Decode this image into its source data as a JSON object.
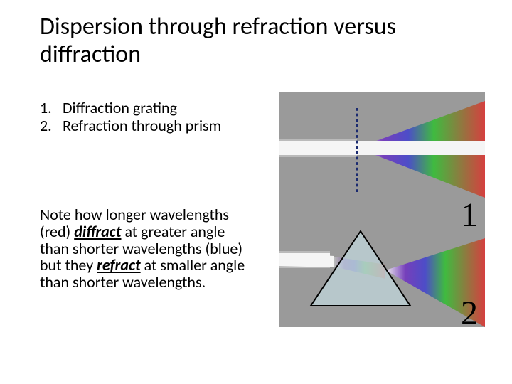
{
  "title_line1": "Dispersion through refraction versus",
  "title_line2": "diffraction",
  "list": {
    "item1_num": "1.",
    "item1_text": "Diffraction grating",
    "item2_num": "2.",
    "item2_text": "Refraction through prism"
  },
  "note": {
    "t1": "Note how longer wavelengths (red) ",
    "t2": "diffract",
    "t3": " at greater angle than shorter wavelengths (blue) but they ",
    "t4": "refract",
    "t5": " at smaller angle than shorter wavelengths."
  },
  "diagram": {
    "label1": "1",
    "label2": "2",
    "label_fontsize": 48,
    "label_color": "#000000",
    "background": "#9a9a9a",
    "light_band": "#f5f5f5",
    "prism_fill": "#d0ecf4",
    "prism_stroke": "#000000",
    "grating_stroke": "#1a2a70",
    "red": "#e03030",
    "green": "#30c030",
    "blue": "#4040d0",
    "violet": "#7030c0",
    "grating_dash_count": 16
  }
}
